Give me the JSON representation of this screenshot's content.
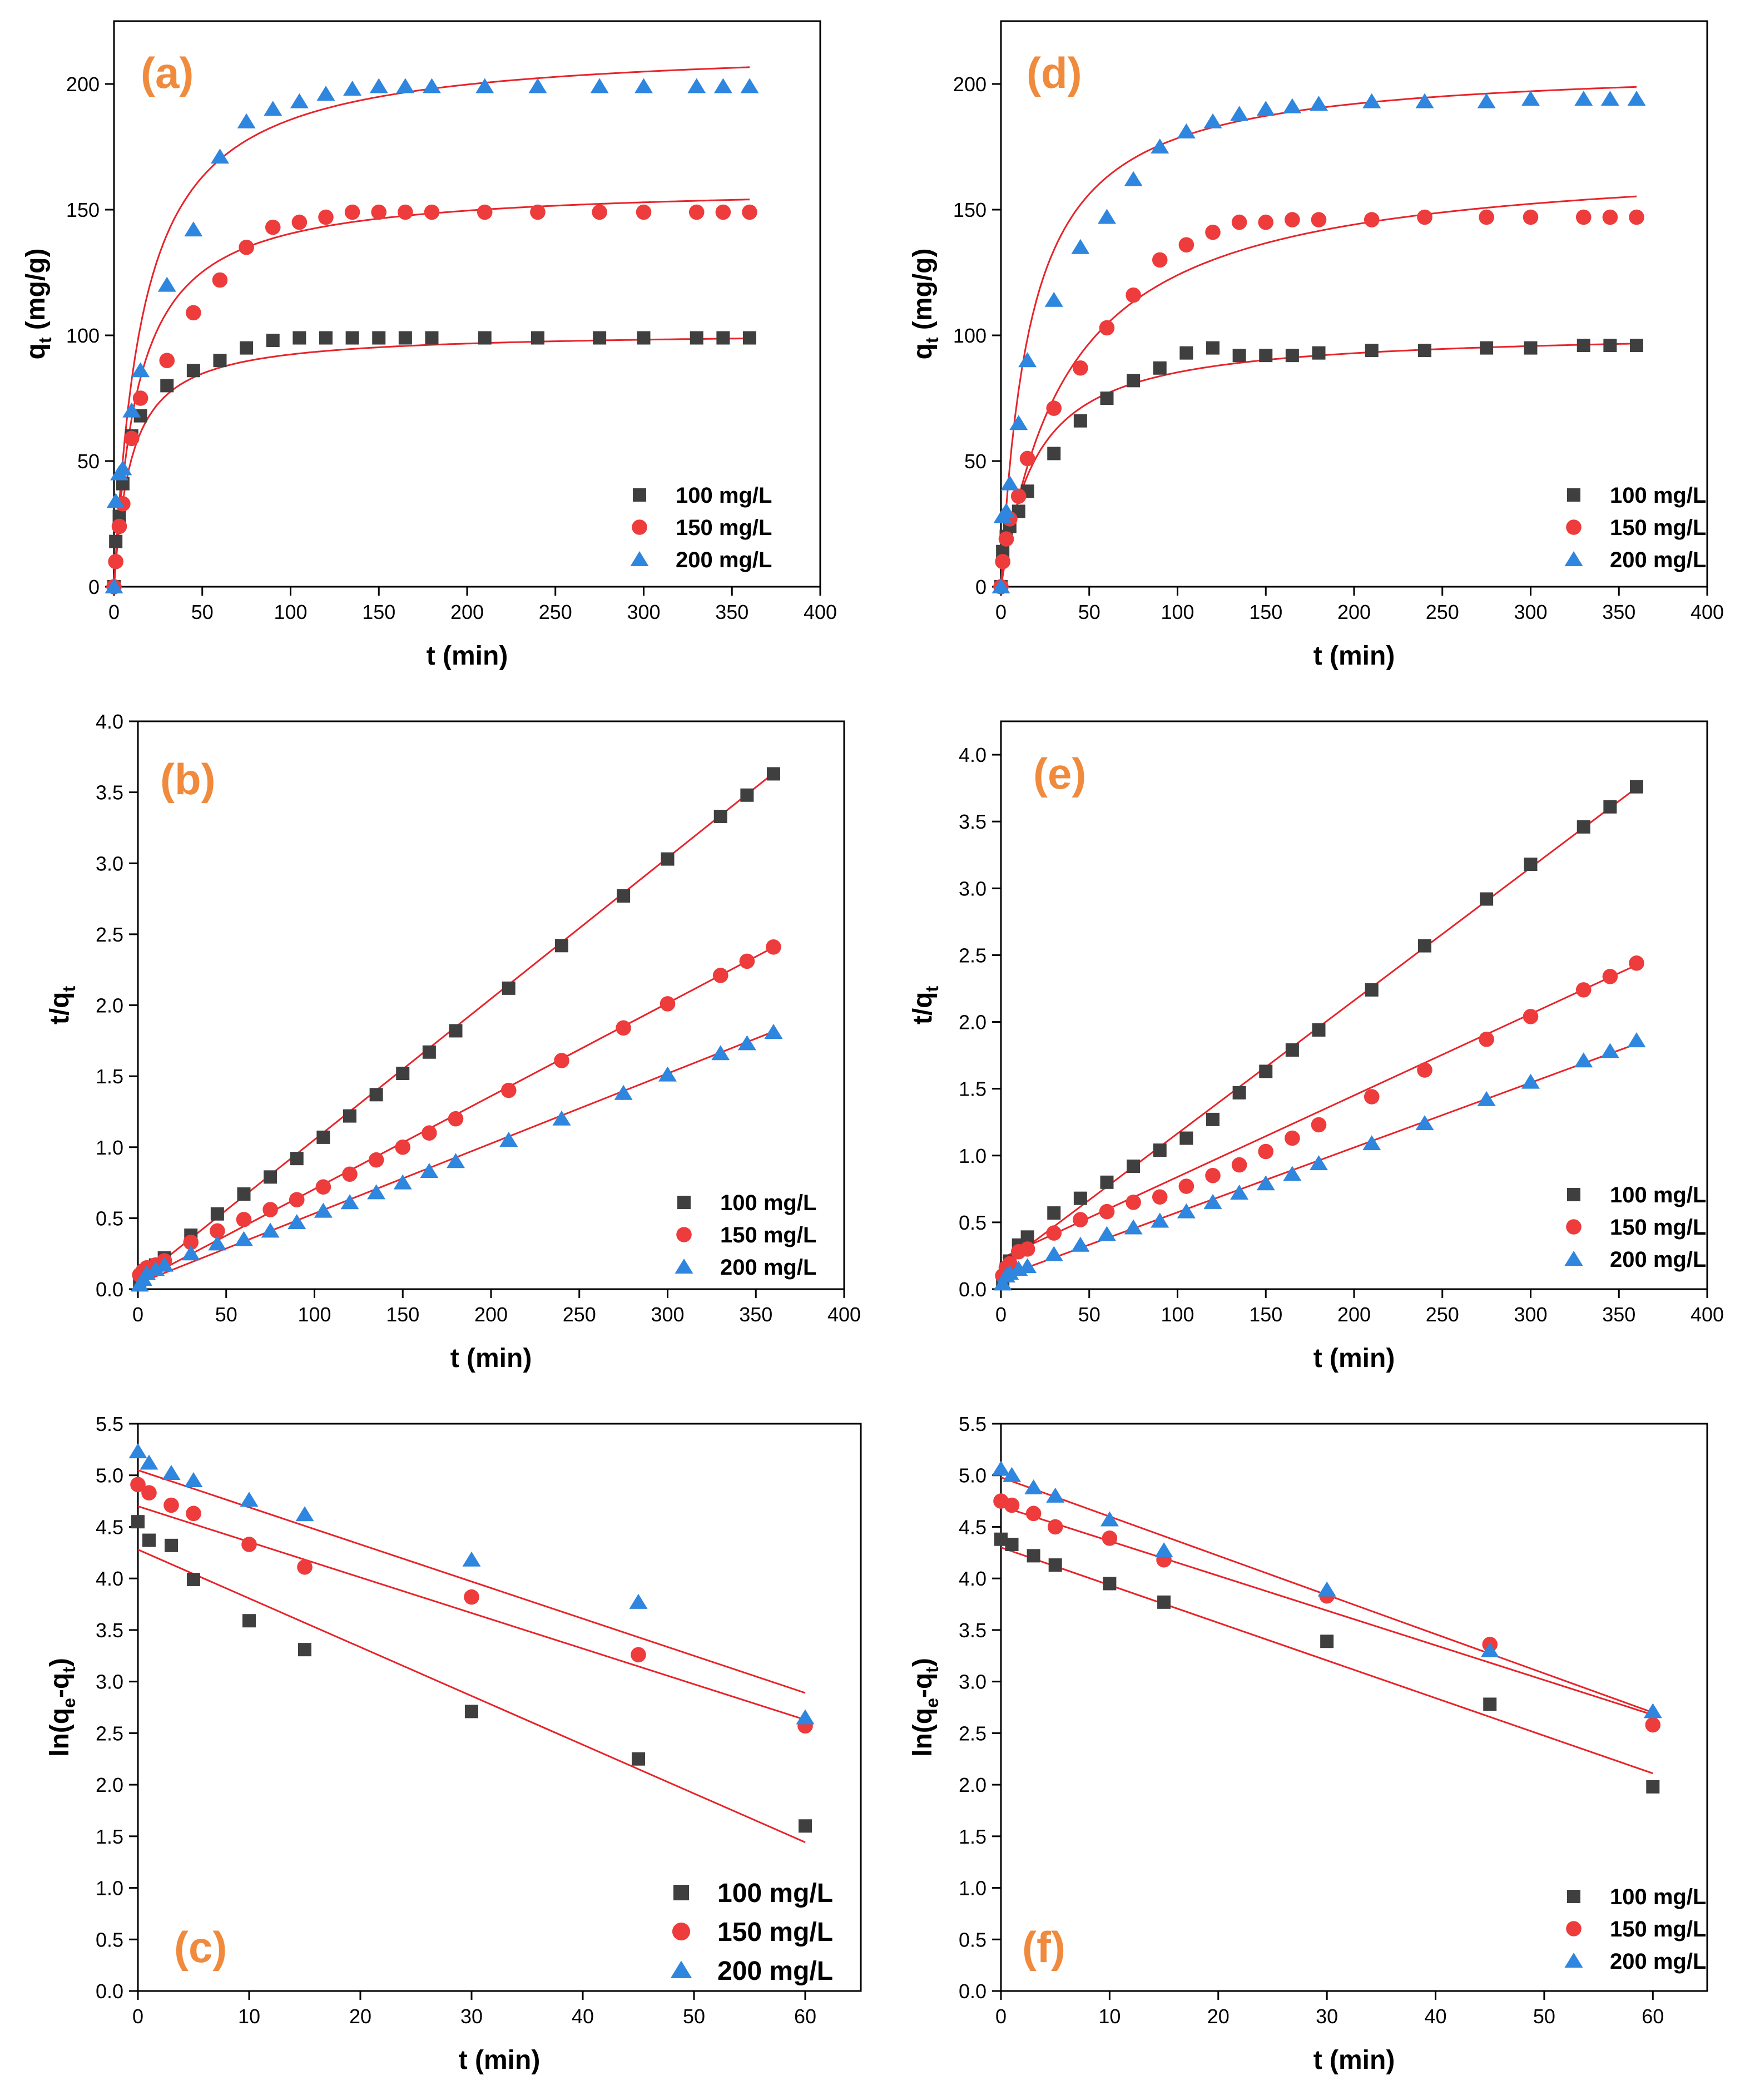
{
  "colors": {
    "accent": "#F08A3C",
    "fit": "#E8242A"
  },
  "series_styles": [
    {
      "name": "100 mg/L",
      "marker": "square",
      "color": "#3F3F3F"
    },
    {
      "name": "150 mg/L",
      "marker": "circle",
      "color": "#EE3B3B"
    },
    {
      "name": "200 mg/L",
      "marker": "triangle",
      "color": "#2E86DE"
    }
  ],
  "chart_data": [
    {
      "label": "(a)",
      "type": "scatter",
      "fit": "curve",
      "xlabel": "t (min)",
      "ylabel": "q_t (mg/g)",
      "xlim": [
        0,
        400
      ],
      "ylim": [
        0,
        225
      ],
      "xticks": [
        "0",
        "50",
        "100",
        "150",
        "200",
        "250",
        "300",
        "350",
        "400"
      ],
      "yticks": [
        "0",
        "50",
        "100",
        "150",
        "200"
      ],
      "legend_position": "bottom-right",
      "series": [
        {
          "name": "100 mg/L",
          "x": [
            0,
            1,
            3,
            5,
            10,
            15,
            30,
            45,
            60,
            75,
            90,
            105,
            120,
            135,
            150,
            165,
            180,
            210,
            240,
            275,
            300,
            330,
            345,
            360
          ],
          "y": [
            0,
            18,
            28,
            41,
            60,
            68,
            80,
            86,
            90,
            95,
            98,
            99,
            99,
            99,
            99,
            99,
            99,
            99,
            99,
            99,
            99,
            99,
            99,
            99
          ],
          "fit": {
            "qe": 101.5,
            "k": 0.001
          }
        },
        {
          "name": "150 mg/L",
          "x": [
            0,
            1,
            3,
            5,
            10,
            15,
            30,
            45,
            60,
            75,
            90,
            105,
            120,
            135,
            150,
            165,
            180,
            210,
            240,
            275,
            300,
            330,
            345,
            360
          ],
          "y": [
            0,
            10,
            24,
            33,
            59,
            75,
            90,
            109,
            122,
            135,
            143,
            145,
            147,
            149,
            149,
            149,
            149,
            149,
            149,
            149,
            149,
            149,
            149,
            149
          ],
          "fit": {
            "qe": 160,
            "k": 0.00045
          }
        },
        {
          "name": "200 mg/L",
          "x": [
            0,
            1,
            3,
            5,
            10,
            15,
            30,
            45,
            60,
            75,
            90,
            105,
            120,
            135,
            150,
            165,
            180,
            210,
            240,
            275,
            300,
            330,
            345,
            360
          ],
          "y": [
            0,
            34,
            45,
            47,
            70,
            86,
            120,
            142,
            171,
            185,
            190,
            193,
            196,
            198,
            199,
            199,
            199,
            199,
            199,
            199,
            199,
            199,
            199,
            199
          ],
          "fit": {
            "qe": 216,
            "k": 0.000285
          }
        }
      ]
    },
    {
      "label": "(b)",
      "type": "scatter",
      "fit": "line",
      "xlabel": "t (min)",
      "ylabel": "t/q_t",
      "xlim": [
        0,
        400
      ],
      "ylim": [
        0,
        4.0
      ],
      "xticks": [
        "0",
        "50",
        "100",
        "150",
        "200",
        "250",
        "300",
        "350",
        "400"
      ],
      "yticks": [
        "0.0",
        "0.5",
        "1.0",
        "1.5",
        "2.0",
        "2.5",
        "3.0",
        "3.5",
        "4.0"
      ],
      "legend_position": "bottom-right",
      "series": [
        {
          "name": "100 mg/L",
          "x": [
            1,
            3,
            5,
            10,
            15,
            30,
            45,
            60,
            75,
            90,
            105,
            120,
            135,
            150,
            165,
            180,
            210,
            240,
            275,
            300,
            330,
            345,
            360
          ],
          "y": [
            0.05,
            0.11,
            0.12,
            0.17,
            0.22,
            0.38,
            0.53,
            0.67,
            0.79,
            0.92,
            1.07,
            1.22,
            1.37,
            1.52,
            1.67,
            1.82,
            2.12,
            2.42,
            2.77,
            3.03,
            3.33,
            3.48,
            3.63
          ],
          "fit": {
            "intercept": 0.06,
            "slope": 0.00993
          }
        },
        {
          "name": "150 mg/L",
          "x": [
            1,
            3,
            5,
            10,
            15,
            30,
            45,
            60,
            75,
            90,
            105,
            120,
            135,
            150,
            165,
            180,
            210,
            240,
            275,
            300,
            330,
            345,
            360
          ],
          "y": [
            0.1,
            0.13,
            0.15,
            0.17,
            0.2,
            0.33,
            0.41,
            0.49,
            0.56,
            0.63,
            0.72,
            0.81,
            0.91,
            1.0,
            1.1,
            1.2,
            1.4,
            1.61,
            1.84,
            2.01,
            2.21,
            2.31,
            2.41
          ],
          "fit": {
            "intercept": 0.05,
            "slope": 0.00655
          }
        },
        {
          "name": "200 mg/L",
          "x": [
            1,
            3,
            5,
            10,
            15,
            30,
            45,
            60,
            75,
            90,
            105,
            120,
            135,
            150,
            165,
            180,
            210,
            240,
            275,
            300,
            330,
            345,
            360
          ],
          "y": [
            0.03,
            0.07,
            0.11,
            0.14,
            0.17,
            0.25,
            0.32,
            0.35,
            0.41,
            0.47,
            0.55,
            0.61,
            0.68,
            0.75,
            0.83,
            0.9,
            1.05,
            1.2,
            1.38,
            1.51,
            1.66,
            1.73,
            1.81
          ],
          "fit": {
            "intercept": 0.04,
            "slope": 0.00493
          }
        }
      ]
    },
    {
      "label": "(c)",
      "type": "scatter",
      "fit": "line",
      "xlabel": "t (min)",
      "ylabel": "ln(q_e-q_t)",
      "xlim": [
        0,
        65
      ],
      "ylim": [
        0,
        5.5
      ],
      "xticks": [
        "0",
        "10",
        "20",
        "30",
        "40",
        "50",
        "60"
      ],
      "yticks": [
        "0.0",
        "0.5",
        "1.0",
        "1.5",
        "2.0",
        "2.5",
        "3.0",
        "3.5",
        "4.0",
        "4.5",
        "5.0",
        "5.5"
      ],
      "legend_position": "bottom-right",
      "series": [
        {
          "name": "100 mg/L",
          "x": [
            0,
            1,
            3,
            5,
            10,
            15,
            30,
            45,
            60
          ],
          "y": [
            4.55,
            4.37,
            4.32,
            3.99,
            3.59,
            3.31,
            2.71,
            2.25,
            1.6
          ],
          "fit": {
            "intercept": 4.28,
            "slope": -0.0473
          }
        },
        {
          "name": "150 mg/L",
          "x": [
            0,
            1,
            3,
            5,
            10,
            15,
            30,
            45,
            60
          ],
          "y": [
            4.91,
            4.83,
            4.71,
            4.63,
            4.33,
            4.11,
            3.82,
            3.26,
            2.57
          ],
          "fit": {
            "intercept": 4.7,
            "slope": -0.0345
          }
        },
        {
          "name": "200 mg/L",
          "x": [
            0,
            1,
            3,
            5,
            10,
            15,
            30,
            45,
            60
          ],
          "y": [
            5.23,
            5.12,
            5.02,
            4.95,
            4.76,
            4.62,
            4.18,
            3.77,
            2.65
          ],
          "fit": {
            "intercept": 5.05,
            "slope": -0.036
          }
        }
      ]
    },
    {
      "label": "(d)",
      "type": "scatter",
      "fit": "curve",
      "xlabel": "t (min)",
      "ylabel": "q_t (mg/g)",
      "xlim": [
        0,
        400
      ],
      "ylim": [
        0,
        225
      ],
      "xticks": [
        "0",
        "50",
        "100",
        "150",
        "200",
        "250",
        "300",
        "350",
        "400"
      ],
      "yticks": [
        "0",
        "50",
        "100",
        "150",
        "200"
      ],
      "legend_position": "bottom-right",
      "series": [
        {
          "name": "100 mg/L",
          "x": [
            0,
            1,
            3,
            5,
            10,
            15,
            30,
            45,
            60,
            75,
            90,
            105,
            120,
            135,
            150,
            165,
            180,
            210,
            240,
            275,
            300,
            330,
            345,
            360
          ],
          "y": [
            0,
            14,
            20,
            24,
            30,
            38,
            53,
            66,
            75,
            82,
            87,
            93,
            95,
            92,
            92,
            92,
            93,
            94,
            94,
            95,
            95,
            96,
            96,
            96
          ],
          "fit": {
            "qe": 102,
            "k": 0.0005
          }
        },
        {
          "name": "150 mg/L",
          "x": [
            0,
            1,
            3,
            5,
            10,
            15,
            30,
            45,
            60,
            75,
            90,
            105,
            120,
            135,
            150,
            165,
            180,
            210,
            240,
            275,
            300,
            330,
            345,
            360
          ],
          "y": [
            0,
            10,
            19,
            27,
            36,
            51,
            71,
            87,
            103,
            116,
            130,
            136,
            141,
            145,
            145,
            146,
            146,
            146,
            147,
            147,
            147,
            147,
            147,
            147
          ],
          "fit": {
            "qe": 172,
            "k": 0.00015
          }
        },
        {
          "name": "200 mg/L",
          "x": [
            0,
            1,
            3,
            5,
            10,
            15,
            30,
            45,
            60,
            75,
            90,
            105,
            120,
            135,
            150,
            165,
            180,
            210,
            240,
            275,
            300,
            330,
            345,
            360
          ],
          "y": [
            0,
            28,
            30,
            41,
            65,
            90,
            114,
            135,
            147,
            162,
            175,
            181,
            185,
            188,
            190,
            191,
            192,
            193,
            193,
            193,
            194,
            194,
            194,
            194
          ],
          "fit": {
            "qe": 208,
            "k": 0.00029
          }
        }
      ]
    },
    {
      "label": "(e)",
      "type": "scatter",
      "fit": "line",
      "xlabel": "t (min)",
      "ylabel": "t/q_t",
      "xlim": [
        0,
        400
      ],
      "ylim": [
        0,
        4.25
      ],
      "xticks": [
        "0",
        "50",
        "100",
        "150",
        "200",
        "250",
        "300",
        "350",
        "400"
      ],
      "yticks": [
        "0.0",
        "0.5",
        "1.0",
        "1.5",
        "2.0",
        "2.5",
        "3.0",
        "3.5",
        "4.0"
      ],
      "legend_position": "bottom-right",
      "series": [
        {
          "name": "100 mg/L",
          "x": [
            1,
            3,
            5,
            10,
            15,
            30,
            45,
            60,
            75,
            90,
            105,
            120,
            135,
            150,
            165,
            180,
            210,
            240,
            275,
            300,
            330,
            345,
            360
          ],
          "y": [
            0.07,
            0.15,
            0.21,
            0.33,
            0.39,
            0.57,
            0.68,
            0.8,
            0.92,
            1.04,
            1.13,
            1.27,
            1.47,
            1.63,
            1.79,
            1.94,
            2.24,
            2.57,
            2.92,
            3.18,
            3.46,
            3.61,
            3.76
          ],
          "fit": {
            "intercept": 0.17,
            "slope": 0.00995
          }
        },
        {
          "name": "150 mg/L",
          "x": [
            1,
            3,
            5,
            10,
            15,
            30,
            45,
            60,
            75,
            90,
            105,
            120,
            135,
            150,
            165,
            180,
            210,
            240,
            275,
            300,
            330,
            345,
            360
          ],
          "y": [
            0.1,
            0.16,
            0.19,
            0.28,
            0.3,
            0.42,
            0.52,
            0.58,
            0.65,
            0.69,
            0.77,
            0.85,
            0.93,
            1.03,
            1.13,
            1.23,
            1.44,
            1.64,
            1.87,
            2.04,
            2.24,
            2.34,
            2.44
          ],
          "fit": {
            "intercept": 0.23,
            "slope": 0.0061
          }
        },
        {
          "name": "200 mg/L",
          "x": [
            1,
            3,
            5,
            10,
            15,
            30,
            45,
            60,
            75,
            90,
            105,
            120,
            135,
            150,
            165,
            180,
            210,
            240,
            275,
            300,
            330,
            345,
            360
          ],
          "y": [
            0.04,
            0.1,
            0.12,
            0.15,
            0.17,
            0.26,
            0.33,
            0.41,
            0.46,
            0.51,
            0.58,
            0.65,
            0.72,
            0.79,
            0.86,
            0.94,
            1.09,
            1.24,
            1.42,
            1.55,
            1.71,
            1.78,
            1.86
          ],
          "fit": {
            "intercept": 0.09,
            "slope": 0.00485
          }
        }
      ]
    },
    {
      "label": "(f)",
      "type": "scatter",
      "fit": "line",
      "xlabel": "t (min)",
      "ylabel": "ln(q_e-q_t)",
      "xlim": [
        0,
        65
      ],
      "ylim": [
        0,
        5.5
      ],
      "xticks": [
        "0",
        "10",
        "20",
        "30",
        "40",
        "50",
        "60"
      ],
      "yticks": [
        "0.0",
        "0.5",
        "1.0",
        "1.5",
        "2.0",
        "2.5",
        "3.0",
        "3.5",
        "4.0",
        "4.5",
        "5.0",
        "5.5"
      ],
      "legend_position": "bottom-right",
      "series": [
        {
          "name": "100 mg/L",
          "x": [
            0,
            1,
            3,
            5,
            10,
            15,
            30,
            45,
            60
          ],
          "y": [
            4.38,
            4.33,
            4.22,
            4.13,
            3.95,
            3.77,
            3.39,
            2.78,
            1.98
          ],
          "fit": {
            "intercept": 4.3,
            "slope": -0.0365
          }
        },
        {
          "name": "150 mg/L",
          "x": [
            0,
            1,
            3,
            5,
            10,
            15,
            30,
            45,
            60
          ],
          "y": [
            4.75,
            4.71,
            4.63,
            4.5,
            4.39,
            4.18,
            3.83,
            3.36,
            2.58
          ],
          "fit": {
            "intercept": 4.7,
            "slope": -0.0337
          }
        },
        {
          "name": "200 mg/L",
          "x": [
            0,
            1,
            3,
            5,
            10,
            15,
            30,
            45,
            60
          ],
          "y": [
            5.06,
            5.0,
            4.88,
            4.8,
            4.57,
            4.27,
            3.89,
            3.3,
            2.71
          ],
          "fit": {
            "intercept": 4.98,
            "slope": -0.038
          }
        }
      ]
    }
  ]
}
